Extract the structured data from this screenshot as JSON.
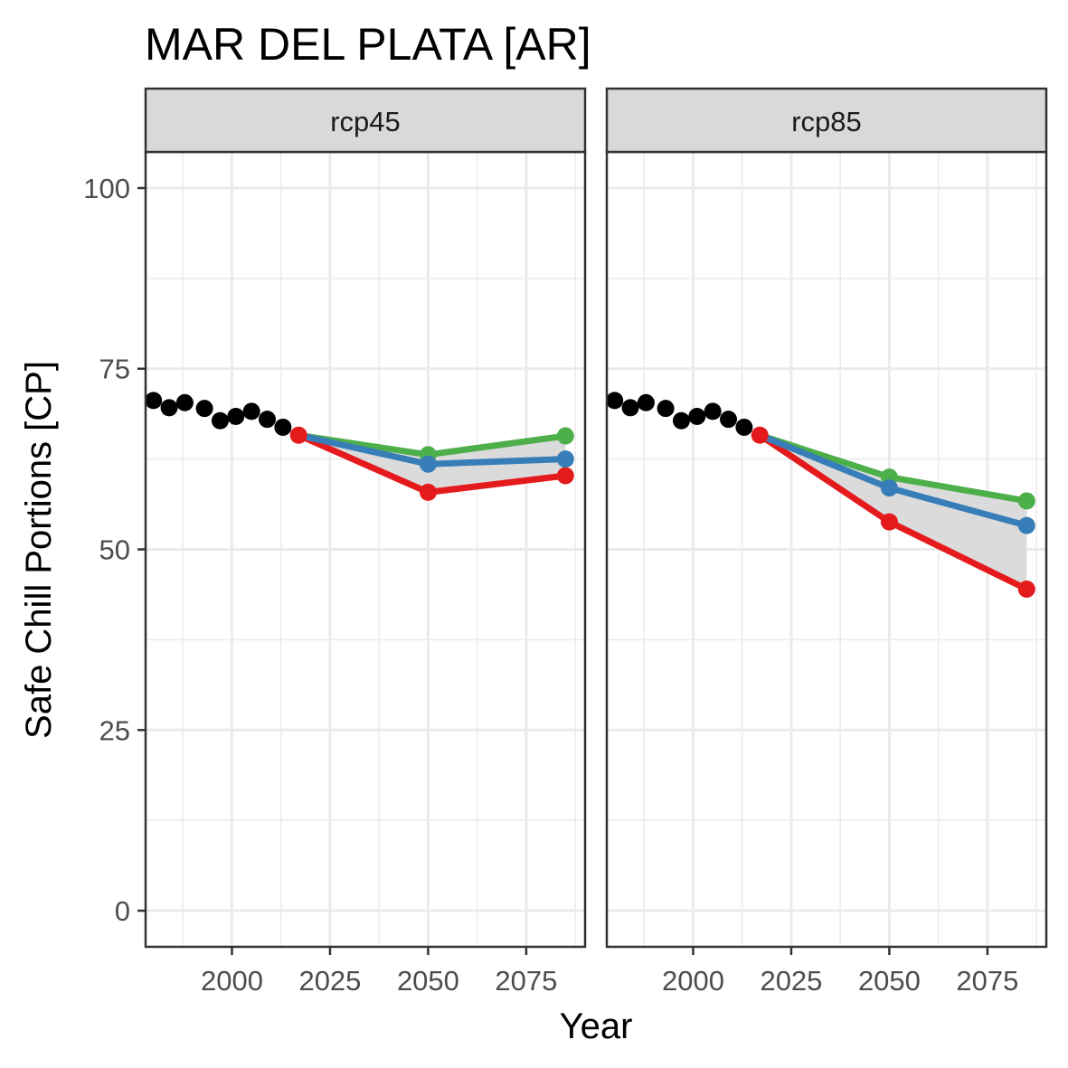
{
  "chart_data": {
    "type": "line",
    "title": "MAR DEL PLATA [AR]",
    "xlabel": "Year",
    "ylabel": "Safe Chill Portions [CP]",
    "xlim": [
      1978,
      2090
    ],
    "ylim": [
      -5,
      105
    ],
    "x_ticks": [
      2000,
      2025,
      2050,
      2075
    ],
    "y_ticks": [
      0,
      25,
      50,
      75,
      100
    ],
    "grid": true,
    "legend": "none",
    "colors": {
      "historic": "#000000",
      "low": "#e41a1c",
      "median": "#377eb8",
      "high": "#4daf4a",
      "ribbon": "#d9d9d9"
    },
    "panels": [
      {
        "label": "rcp45",
        "historic": {
          "x": [
            1980,
            1984,
            1988,
            1993,
            1997,
            2001,
            2005,
            2009,
            2013,
            2017
          ],
          "y": [
            70.6,
            69.6,
            70.3,
            69.5,
            67.8,
            68.4,
            69.1,
            68.0,
            66.9,
            65.8
          ]
        },
        "scenarios": {
          "x": [
            2017,
            2050,
            2085
          ],
          "low": [
            65.8,
            57.9,
            60.2
          ],
          "median": [
            65.8,
            61.8,
            62.5
          ],
          "high": [
            65.8,
            63.1,
            65.7
          ]
        }
      },
      {
        "label": "rcp85",
        "historic": {
          "x": [
            1980,
            1984,
            1988,
            1993,
            1997,
            2001,
            2005,
            2009,
            2013,
            2017
          ],
          "y": [
            70.6,
            69.6,
            70.3,
            69.5,
            67.8,
            68.4,
            69.1,
            68.0,
            66.9,
            65.8
          ]
        },
        "scenarios": {
          "x": [
            2017,
            2050,
            2085
          ],
          "low": [
            65.8,
            53.8,
            44.5
          ],
          "median": [
            65.8,
            58.5,
            53.3
          ],
          "high": [
            65.8,
            60.0,
            56.7
          ]
        }
      }
    ]
  }
}
